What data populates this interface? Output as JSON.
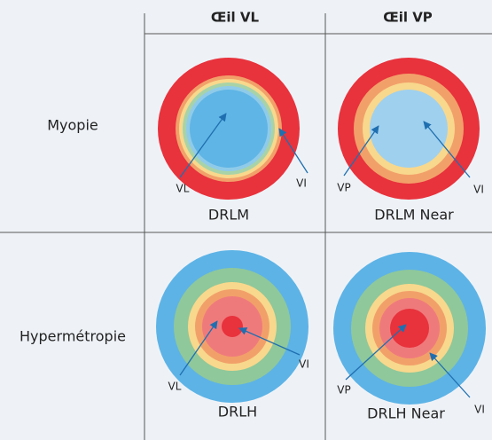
{
  "header": {
    "columns": [
      "Œil VL",
      "Œil VP"
    ]
  },
  "rows": [
    {
      "label": "Myopie",
      "cells": [
        {
          "name": "DRLM",
          "labels": [
            "VL",
            "VI"
          ]
        },
        {
          "name": "DRLM Near",
          "labels": [
            "VP",
            "VI"
          ]
        }
      ]
    },
    {
      "label": "Hypermétropie",
      "cells": [
        {
          "name": "DRLH",
          "labels": [
            "VL",
            "VI"
          ]
        },
        {
          "name": "DRLH Near",
          "labels": [
            "VP",
            "VI"
          ]
        }
      ]
    }
  ]
}
